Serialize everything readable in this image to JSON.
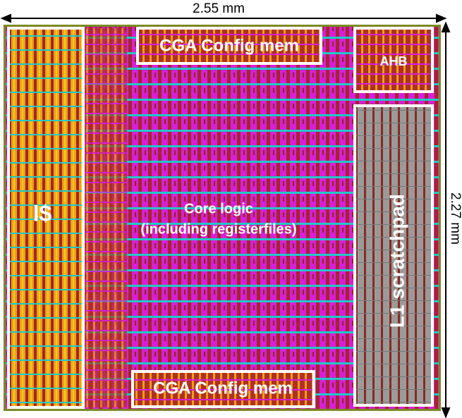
{
  "dimensions": {
    "width": "2.55 mm",
    "height": "2.27 mm"
  },
  "blocks": {
    "icache": {
      "label": "I$"
    },
    "cga_top": {
      "label": "CGA Config mem"
    },
    "ahb": {
      "label": "AHB"
    },
    "core": {
      "label": "Core logic",
      "sublabel": "(including registerfiles)"
    },
    "l1": {
      "label": "L1 scratchpad"
    },
    "cga_bottom": {
      "label": "CGA Config mem"
    }
  }
}
